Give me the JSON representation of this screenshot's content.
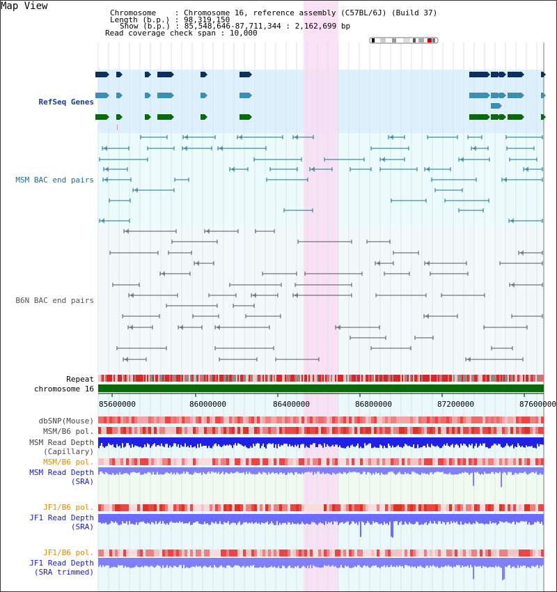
{
  "title": "Map View",
  "header": {
    "chromosome_key": "Chromosome",
    "chromosome_val": "Chromosome 16, reference assembly (C57BL/6J) (Build 37)",
    "length_key": "Length (b.p.)",
    "length_val": "98,319,150",
    "show_key": "Show (b.p.)",
    "show_val": "85,548,646-87,711,344 : 2,162,699 bp",
    "span_key": "Read coverage check span",
    "span_val": "10,000"
  },
  "tracks": {
    "refseq": "RefSeq Genes",
    "msm_bac": "MSM BAC end pairs",
    "b6n_bac": "B6N BAC end pairs",
    "repeat": "Repeat",
    "chromosome": "chromosome 16",
    "dbsnp": "dbSNP(Mouse)",
    "msm_b6_pol_1": "MSM/B6 pol.",
    "msm_read_depth_cap_1": "MSM Read Depth",
    "msm_read_depth_cap_2": "(Capillary)",
    "msm_b6_pol_2": "MSM/B6 pol.",
    "msm_read_depth_sra_1": "MSM Read Depth",
    "msm_read_depth_sra_2": "(SRA)",
    "jf1_b6_pol_1": "JF1/B6 pol.",
    "jf1_read_depth_sra_1": "JF1 Read Depth",
    "jf1_read_depth_sra_2": "(SRA)",
    "jf1_b6_pol_2": "JF1/B6 pol.",
    "jf1_read_depth_trim_1": "JF1 Read Depth",
    "jf1_read_depth_trim_2": "(SRA trimmed)"
  },
  "axis_ticks": [
    "85600000",
    "86000000",
    "86400000",
    "86800000",
    "87200000",
    "87600000"
  ],
  "colors": {
    "refseq_bg": "#dcf1fb",
    "bac_bg": "#ecfbfb",
    "highlight": "#f9dcf3",
    "msm_sra_bg": "#eefbee",
    "navy": "#0d2f5f",
    "teal": "#1c6f89",
    "green": "#0a6a0a",
    "chrom_green": "#0a6a0a",
    "depth_blue": "#1f1fe8",
    "depth_light": "#8080ff"
  }
}
